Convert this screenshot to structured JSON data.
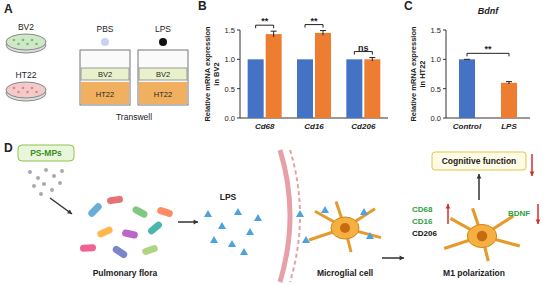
{
  "figure": {
    "panel_a": {
      "label": "A",
      "dishes": [
        "BV2",
        "HT22"
      ],
      "caption": "Transwell",
      "wells": [
        {
          "treatment": "PBS",
          "upper": "BV2",
          "lower": "HT22"
        },
        {
          "treatment": "LPS",
          "upper": "BV2",
          "lower": "HT22"
        }
      ]
    },
    "panel_d": {
      "label": "D",
      "source": "PS-MPs",
      "flora": "Pulmonary flora",
      "toxin": "LPS",
      "cell": "Microglial cell",
      "outcome": "M1 polarization",
      "effect": "Cognitive function",
      "markers": [
        "CD68",
        "CD16",
        "CD206"
      ],
      "neurotrophin": "BDNF"
    }
  },
  "chart_data": [
    {
      "type": "bar",
      "panel_label": "B",
      "ylabel": [
        "Relative mRNA expression",
        "in BV2"
      ],
      "categories": [
        "Cd68",
        "Cd16",
        "Cd206"
      ],
      "series": [
        {
          "color": "#4472c4",
          "values": [
            1.0,
            1.0,
            1.0
          ]
        },
        {
          "color": "#ed7d31",
          "values": [
            1.43,
            1.45,
            1.0
          ],
          "errors": [
            0.05,
            0.04,
            0.03
          ]
        }
      ],
      "significance": [
        "**",
        "**",
        "ns"
      ],
      "ylim": [
        0,
        1.5
      ],
      "yticks": [
        {
          "value": 0,
          "label": "0.0"
        },
        {
          "value": 0.5,
          "label": "0.5"
        },
        {
          "value": 1.0,
          "label": "1.0"
        },
        {
          "value": 1.5,
          "label": "1.5"
        }
      ]
    },
    {
      "type": "bar",
      "panel_label": "C",
      "title": "Bdnf",
      "ylabel": [
        "Relative mRNA expression",
        "in HT22"
      ],
      "categories": [
        "Control",
        "LPS"
      ],
      "values": [
        1.0,
        0.6
      ],
      "errors": [
        0,
        0.02
      ],
      "colors": [
        "#4472c4",
        "#ed7d31"
      ],
      "significance": [
        "**"
      ],
      "ylim": [
        0,
        1.5
      ],
      "yticks": [
        {
          "value": 0,
          "label": "0.0"
        },
        {
          "value": 0.5,
          "label": "0.5"
        },
        {
          "value": 1.0,
          "label": "1.0"
        },
        {
          "value": 1.5,
          "label": "1.5"
        }
      ]
    }
  ]
}
